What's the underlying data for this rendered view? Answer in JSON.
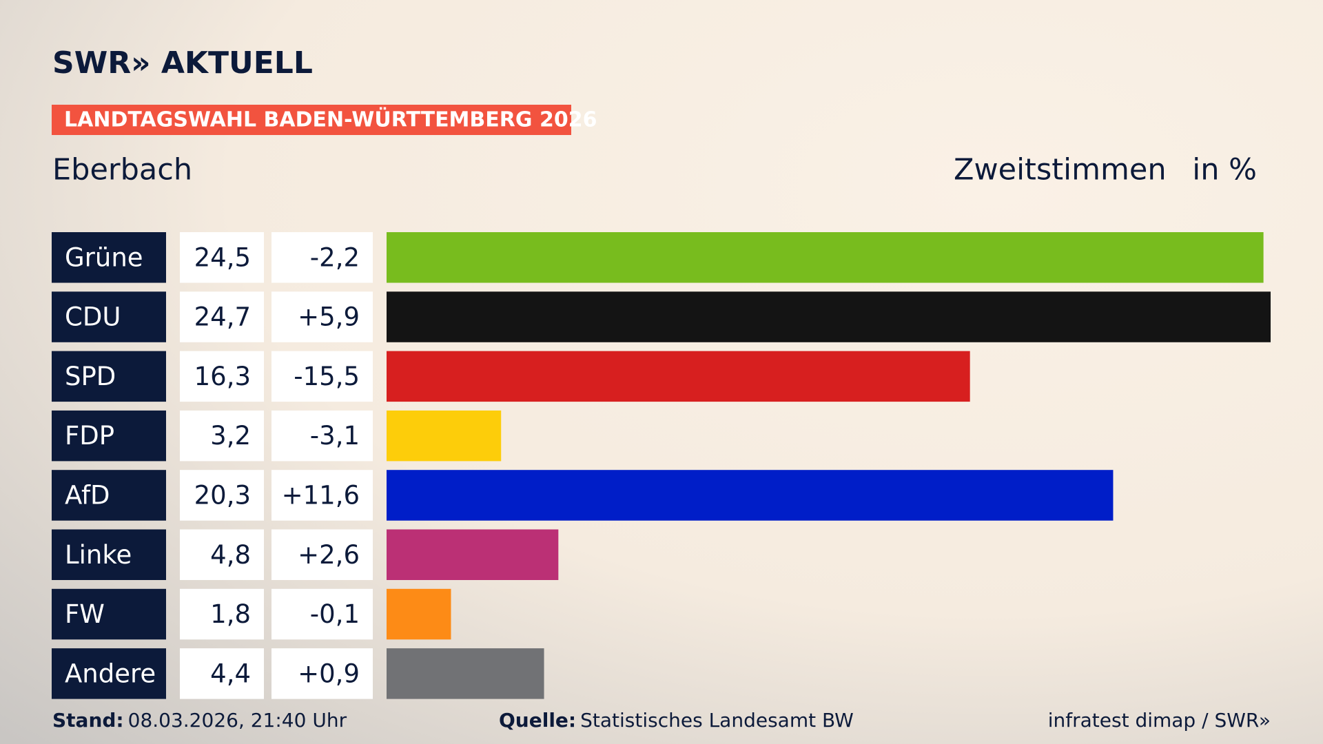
{
  "header": {
    "logo": "SWR» AKTUELL",
    "banner": "LANDTAGSWAHL BADEN-WÜRTTEMBERG 2026"
  },
  "chart_data": {
    "type": "bar",
    "title": "Eberbach",
    "subtitle": "Zweitstimmen",
    "unit": "in %",
    "categories": [
      "Grüne",
      "CDU",
      "SPD",
      "FDP",
      "AfD",
      "Linke",
      "FW",
      "Andere"
    ],
    "values": [
      24.5,
      24.7,
      16.3,
      3.2,
      20.3,
      4.8,
      1.8,
      4.4
    ],
    "value_labels": [
      "24,5",
      "24,7",
      "16,3",
      "3,2",
      "20,3",
      "4,8",
      "1,8",
      "4,4"
    ],
    "change_labels": [
      "-2,2",
      "+5,9",
      "-15,5",
      "-3,1",
      "+11,6",
      "+2,6",
      "-0,1",
      "+0,9"
    ],
    "colors": [
      "#78bc1e",
      "#141414",
      "#d71f1f",
      "#fdcd0a",
      "#001ec8",
      "#bb3075",
      "#fd8b16",
      "#717275"
    ]
  },
  "footer": {
    "stand_label": "Stand:",
    "stand": "08.03.2026, 21:40 Uhr",
    "source_label": "Quelle:",
    "source": "Statistisches Landesamt BW",
    "credit": "infratest dimap / SWR»"
  }
}
